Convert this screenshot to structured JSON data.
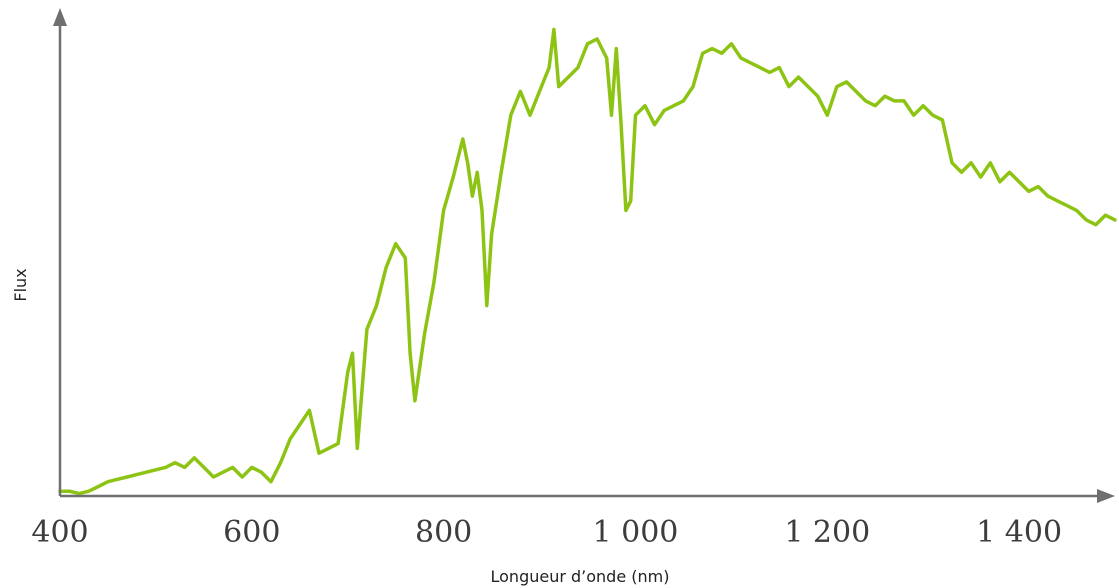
{
  "chart_data": {
    "type": "line",
    "title": "",
    "xlabel": "Longueur d’onde (nm)",
    "ylabel": "Flux",
    "xlim": [
      400,
      1500
    ],
    "ylim": [
      0,
      1
    ],
    "x_ticks": [
      400,
      600,
      800,
      1000,
      1200,
      1400
    ],
    "x_tick_labels": [
      "400",
      "600",
      "800",
      "1 000",
      "1 200",
      "1 400"
    ],
    "y_ticks_shown": false,
    "grid": false,
    "legend": "none",
    "colors": {
      "series": "#8dc414",
      "axis": "#6f6f6f"
    },
    "series": [
      {
        "x": [
          400,
          410,
          420,
          430,
          440,
          450,
          460,
          470,
          480,
          490,
          500,
          510,
          520,
          530,
          540,
          550,
          560,
          570,
          580,
          590,
          600,
          610,
          620,
          630,
          640,
          650,
          660,
          670,
          680,
          690,
          700,
          705,
          710,
          720,
          730,
          740,
          750,
          760,
          765,
          770,
          775,
          780,
          790,
          800,
          810,
          820,
          825,
          830,
          835,
          840,
          845,
          850,
          860,
          870,
          880,
          890,
          900,
          910,
          915,
          920,
          930,
          940,
          950,
          960,
          970,
          975,
          980,
          985,
          990,
          995,
          1000,
          1010,
          1020,
          1030,
          1040,
          1050,
          1060,
          1070,
          1080,
          1090,
          1100,
          1110,
          1120,
          1130,
          1140,
          1150,
          1160,
          1170,
          1180,
          1190,
          1200,
          1210,
          1220,
          1230,
          1240,
          1250,
          1260,
          1270,
          1280,
          1290,
          1300,
          1310,
          1320,
          1330,
          1340,
          1350,
          1360,
          1370,
          1380,
          1390,
          1400,
          1410,
          1420,
          1430,
          1440,
          1450,
          1460,
          1470,
          1480,
          1490,
          1500
        ],
        "y": [
          0.01,
          0.01,
          0.005,
          0.01,
          0.02,
          0.03,
          0.035,
          0.04,
          0.045,
          0.05,
          0.055,
          0.06,
          0.07,
          0.06,
          0.08,
          0.06,
          0.04,
          0.05,
          0.06,
          0.04,
          0.06,
          0.05,
          0.03,
          0.07,
          0.12,
          0.15,
          0.18,
          0.09,
          0.1,
          0.11,
          0.26,
          0.3,
          0.1,
          0.35,
          0.4,
          0.48,
          0.53,
          0.5,
          0.3,
          0.2,
          0.27,
          0.34,
          0.45,
          0.6,
          0.67,
          0.75,
          0.7,
          0.63,
          0.68,
          0.6,
          0.4,
          0.55,
          0.68,
          0.8,
          0.85,
          0.8,
          0.85,
          0.9,
          0.98,
          0.86,
          0.88,
          0.9,
          0.95,
          0.96,
          0.92,
          0.8,
          0.94,
          0.78,
          0.6,
          0.62,
          0.8,
          0.82,
          0.78,
          0.81,
          0.82,
          0.83,
          0.86,
          0.93,
          0.94,
          0.93,
          0.95,
          0.92,
          0.91,
          0.9,
          0.89,
          0.9,
          0.86,
          0.88,
          0.86,
          0.84,
          0.8,
          0.86,
          0.87,
          0.85,
          0.83,
          0.82,
          0.84,
          0.83,
          0.83,
          0.8,
          0.82,
          0.8,
          0.79,
          0.7,
          0.68,
          0.7,
          0.67,
          0.7,
          0.66,
          0.68,
          0.66,
          0.64,
          0.65,
          0.63,
          0.62,
          0.61,
          0.6,
          0.58,
          0.57,
          0.59,
          0.58
        ]
      }
    ]
  }
}
